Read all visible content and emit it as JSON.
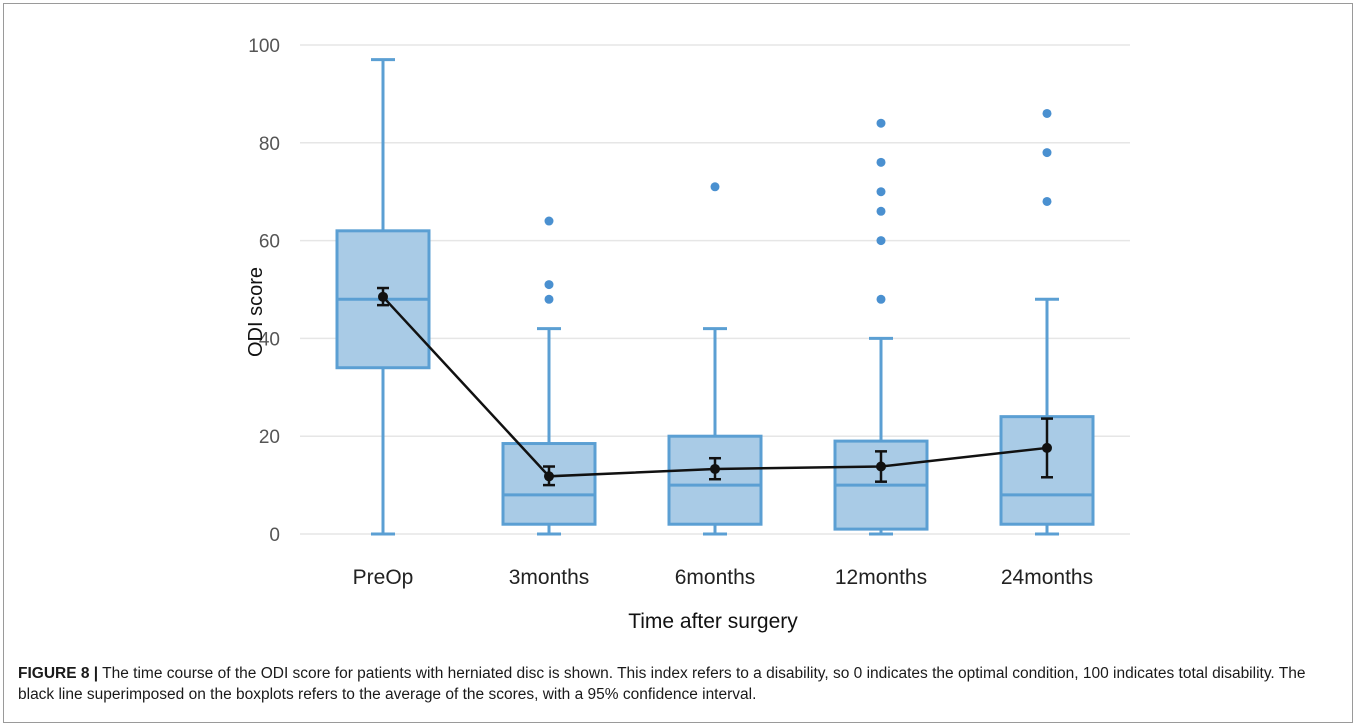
{
  "caption": {
    "label": "FIGURE 8 |",
    "text": "The time course of the ODI score for patients with herniated disc is shown. This index refers to a disability, so 0 indicates the optimal condition, 100 indicates total disability. The black line superimposed on the boxplots refers to the average of the scores, with a 95% confidence interval."
  },
  "colors": {
    "box_fill": "#a9cbe6",
    "box_stroke": "#5b9fd3",
    "outlier": "#4a90d0",
    "mean_line": "#111111",
    "grid": "#e6e6e6",
    "tick_text": "#555555"
  },
  "chart_data": {
    "type": "boxplot",
    "title": "",
    "xlabel": "Time after surgery",
    "ylabel": "ODI score",
    "ylim": [
      0,
      100
    ],
    "yticks": [
      0,
      20,
      40,
      60,
      80,
      100
    ],
    "grid": true,
    "categories": [
      "PreOp",
      "3months",
      "6months",
      "12months",
      "24months"
    ],
    "boxes": [
      {
        "category": "PreOp",
        "min": 0,
        "q1": 34,
        "median": 48,
        "q3": 62,
        "max": 97,
        "outliers": []
      },
      {
        "category": "3months",
        "min": 0,
        "q1": 2,
        "median": 8,
        "q3": 18.5,
        "max": 42,
        "outliers": [
          48,
          51,
          64
        ]
      },
      {
        "category": "6months",
        "min": 0,
        "q1": 2,
        "median": 10,
        "q3": 20,
        "max": 42,
        "outliers": [
          71
        ]
      },
      {
        "category": "12months",
        "min": 0,
        "q1": 1,
        "median": 10,
        "q3": 19,
        "max": 40,
        "outliers": [
          48,
          60,
          66,
          70,
          76,
          84
        ]
      },
      {
        "category": "24months",
        "min": 0,
        "q1": 2,
        "median": 8,
        "q3": 24,
        "max": 48,
        "outliers": [
          68,
          78,
          86
        ]
      }
    ],
    "mean_series": {
      "means": [
        48.5,
        11.8,
        13.3,
        13.8,
        17.6
      ],
      "ci_low": [
        46.8,
        10.0,
        11.2,
        10.7,
        11.6
      ],
      "ci_high": [
        50.3,
        13.8,
        15.5,
        16.9,
        23.6
      ]
    }
  }
}
